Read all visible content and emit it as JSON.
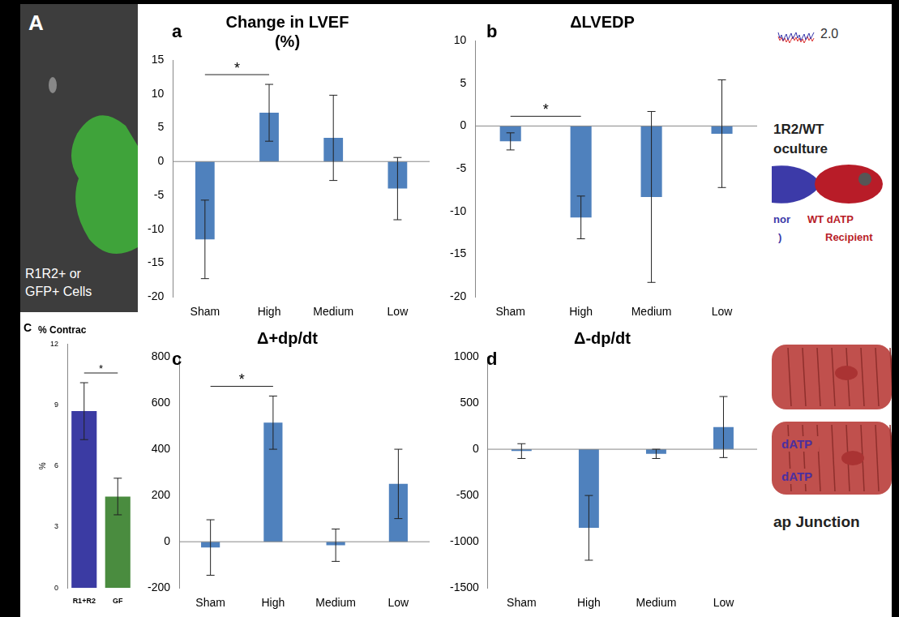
{
  "chart_data": [
    {
      "panel": "a",
      "type": "bar",
      "title": [
        "Change in LVEF",
        "(%)"
      ],
      "categories": [
        "Sham",
        "High",
        "Medium",
        "Low"
      ],
      "values": [
        -11.5,
        7.2,
        3.5,
        -4
      ],
      "errors": [
        5.8,
        4.2,
        6.3,
        4.6
      ],
      "color": "#4f81bd",
      "ylim": [
        -20,
        15
      ],
      "yticks": [
        -20,
        -15,
        -10,
        -5,
        0,
        5,
        10,
        15
      ],
      "grid": false,
      "annotations": [
        {
          "from": "Sham",
          "to": "High",
          "text": "*"
        }
      ]
    },
    {
      "panel": "b",
      "type": "bar",
      "title": [
        "ΔLVEDP"
      ],
      "categories": [
        "Sham",
        "High",
        "Medium",
        "Low"
      ],
      "values": [
        -1.8,
        -10.7,
        -8.3,
        -0.9
      ],
      "errors": [
        1,
        2.5,
        10,
        6.3
      ],
      "color": "#4f81bd",
      "ylim": [
        -20,
        10
      ],
      "yticks": [
        -20,
        -15,
        -10,
        -5,
        0,
        5,
        10
      ],
      "grid": false,
      "annotations": [
        {
          "from": "Sham",
          "to": "High",
          "text": "*"
        }
      ]
    },
    {
      "panel": "c",
      "type": "bar",
      "title": [
        "Δ+dp/dt"
      ],
      "categories": [
        "Sham",
        "High",
        "Medium",
        "Low"
      ],
      "values": [
        -25,
        515,
        -15,
        250
      ],
      "errors": [
        120,
        115,
        70,
        150
      ],
      "color": "#4f81bd",
      "ylim": [
        -200,
        800
      ],
      "yticks": [
        -200,
        0,
        200,
        400,
        600,
        800
      ],
      "grid": false,
      "annotations": [
        {
          "from": "Sham",
          "to": "High",
          "text": "*"
        }
      ]
    },
    {
      "panel": "d",
      "type": "bar",
      "title": [
        "Δ-dp/dt"
      ],
      "categories": [
        "Sham",
        "High",
        "Medium",
        "Low"
      ],
      "values": [
        -20,
        -850,
        -50,
        240
      ],
      "errors": [
        80,
        350,
        50,
        330
      ],
      "color": "#4f81bd",
      "ylim": [
        -1500,
        1000
      ],
      "yticks": [
        -1500,
        -1000,
        -500,
        0,
        500,
        1000
      ],
      "grid": false,
      "annotations": []
    },
    {
      "panel": "C",
      "type": "bar",
      "title": [
        "% Contrac"
      ],
      "ylabel": "%",
      "categories": [
        "R1+R2",
        "GF"
      ],
      "values": [
        8.7,
        4.5
      ],
      "errors": [
        1.4,
        0.9
      ],
      "colors": [
        "#3b3ba3",
        "#4a8c3f"
      ],
      "ylim": [
        0,
        12
      ],
      "yticks": [
        0,
        3,
        6,
        9,
        12
      ],
      "grid": false,
      "annotations": [
        {
          "from": "R1+R2",
          "to": "GF",
          "text": "*"
        }
      ]
    }
  ],
  "fragments": {
    "panel_A": {
      "letter": "A",
      "caption": [
        "R1R2+ or",
        "GFP+ Cells"
      ]
    },
    "trace_label": "2.0",
    "coculture_title": [
      "1R2/WT",
      "oculture"
    ],
    "donor_labels": [
      "nor",
      ")"
    ],
    "recipient_labels": [
      "WT dATP",
      "Recipient"
    ],
    "cell_labels": [
      "dATP",
      "dATP"
    ],
    "junction_label": "ap Junction"
  }
}
